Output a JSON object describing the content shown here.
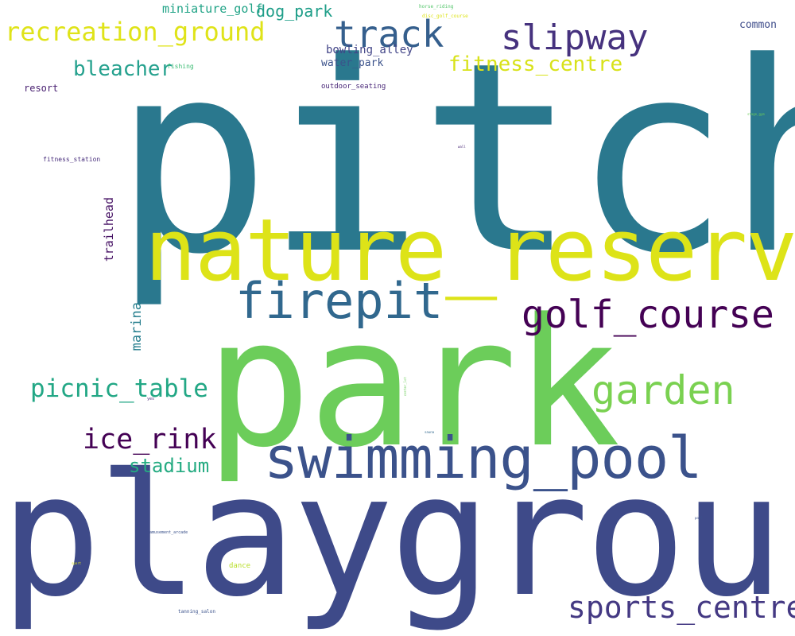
{
  "words": [
    {
      "key": "pitch",
      "text": "pitch",
      "color": "#2a788e"
    },
    {
      "key": "nature_reserve",
      "text": "nature_reserve",
      "color": "#dde318"
    },
    {
      "key": "park",
      "text": "park",
      "color": "#6ccd5a"
    },
    {
      "key": "playground",
      "text": "playground",
      "color": "#3e4a89"
    },
    {
      "key": "swimming_pool",
      "text": "swimming_pool",
      "color": "#3b528b"
    },
    {
      "key": "firepit",
      "text": "firepit",
      "color": "#31688e"
    },
    {
      "key": "golf_course",
      "text": "golf_course",
      "color": "#440154"
    },
    {
      "key": "garden",
      "text": "garden",
      "color": "#7ad151"
    },
    {
      "key": "sports_centre",
      "text": "sports_centre",
      "color": "#443983"
    },
    {
      "key": "track",
      "text": "track",
      "color": "#355f8d"
    },
    {
      "key": "slipway",
      "text": "slipway",
      "color": "#46327e"
    },
    {
      "key": "recreation_ground",
      "text": "recreation_ground",
      "color": "#dfe318"
    },
    {
      "key": "fitness_centre",
      "text": "fitness_centre",
      "color": "#d8e219"
    },
    {
      "key": "bleacher",
      "text": "bleacher",
      "color": "#25a18e"
    },
    {
      "key": "picnic_table",
      "text": "picnic_table",
      "color": "#22a785"
    },
    {
      "key": "ice_rink",
      "text": "ice_rink",
      "color": "#440154"
    },
    {
      "key": "stadium",
      "text": "stadium",
      "color": "#25ab82"
    },
    {
      "key": "dog_park",
      "text": "dog_park",
      "color": "#1f9e89"
    },
    {
      "key": "miniature_golf",
      "text": "miniature_golf",
      "color": "#20a386"
    },
    {
      "key": "bowling_alley",
      "text": "bowling_alley",
      "color": "#414487"
    },
    {
      "key": "water_park",
      "text": "water_park",
      "color": "#3b528b"
    },
    {
      "key": "common",
      "text": "common",
      "color": "#3e4c8a"
    },
    {
      "key": "resort",
      "text": "resort",
      "color": "#481f70"
    },
    {
      "key": "fishing",
      "text": "fishing",
      "color": "#3dbc74"
    },
    {
      "key": "outdoor_seating",
      "text": "outdoor_seating",
      "color": "#482677"
    },
    {
      "key": "horse_riding",
      "text": "horse_riding",
      "color": "#52c569"
    },
    {
      "key": "disc_golf_course",
      "text": "disc_golf_course",
      "color": "#dde318"
    },
    {
      "key": "fitness_station",
      "text": "fitness_station",
      "color": "#472d7b"
    },
    {
      "key": "trailhead",
      "text": "trailhead",
      "color": "#471365",
      "vertical": true
    },
    {
      "key": "marina",
      "text": "marina",
      "color": "#277f8e",
      "vertical": true
    },
    {
      "key": "dance",
      "text": "dance",
      "color": "#b8de29"
    },
    {
      "key": "tanning_salon",
      "text": "tanning_salon",
      "color": "#3b528b"
    },
    {
      "key": "amusement_arcade",
      "text": "amusement_arcade",
      "color": "#3b528b"
    },
    {
      "key": "sport",
      "text": "sport",
      "color": "#dde318"
    },
    {
      "key": "yes",
      "text": "yes",
      "color": "#482677"
    },
    {
      "key": "pool",
      "text": "pool",
      "color": "#3b528b"
    },
    {
      "key": "tiny1",
      "text": "stage_gym",
      "color": "#6ccd5a"
    },
    {
      "key": "tiny2",
      "text": "wall",
      "color": "#482677"
    },
    {
      "key": "tiny3",
      "text": "sauna",
      "color": "#31688e"
    },
    {
      "key": "tiny4",
      "text": "center_lot",
      "color": "#6ccd5a",
      "vertical": true
    }
  ]
}
